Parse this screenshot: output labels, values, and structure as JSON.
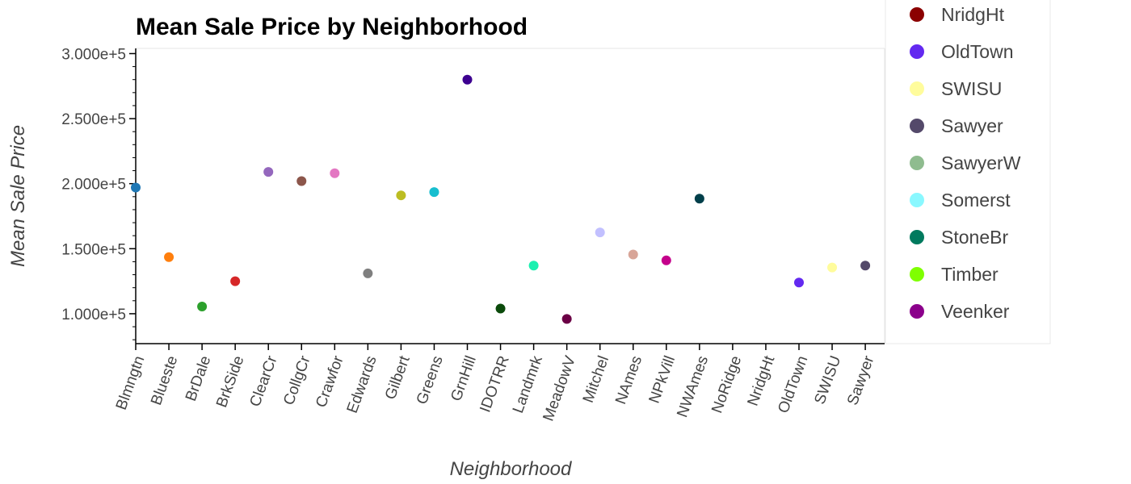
{
  "chart_data": {
    "type": "scatter",
    "title": "Mean Sale Price by Neighborhood",
    "xlabel": "Neighborhood",
    "ylabel": "Mean Sale Price",
    "ylim": [
      77000,
      304000
    ],
    "y_ticks": [
      100000,
      150000,
      200000,
      250000,
      300000
    ],
    "y_tick_labels": [
      "1.000e+5",
      "1.500e+5",
      "2.000e+5",
      "2.500e+5",
      "3.000e+5"
    ],
    "grid": false,
    "legend_position": "right",
    "categories": [
      "Blmngtn",
      "Blueste",
      "BrDale",
      "BrkSide",
      "ClearCr",
      "CollgCr",
      "Crawfor",
      "Edwards",
      "Gilbert",
      "Greens",
      "GrnHill",
      "IDOTRR",
      "Landmrk",
      "MeadowV",
      "Mitchel",
      "NAmes",
      "NPkVill",
      "NWAmes",
      "NoRidge",
      "NridgHt",
      "OldTown",
      "SWISU",
      "Sawyer"
    ],
    "points": [
      {
        "x": "Blmngtn",
        "y": 197000,
        "color": "#1f77b4"
      },
      {
        "x": "Blueste",
        "y": 143500,
        "color": "#ff7f0e"
      },
      {
        "x": "BrDale",
        "y": 105500,
        "color": "#2ca02c"
      },
      {
        "x": "BrkSide",
        "y": 125000,
        "color": "#d62728"
      },
      {
        "x": "ClearCr",
        "y": 209000,
        "color": "#9467bd"
      },
      {
        "x": "CollgCr",
        "y": 202000,
        "color": "#8c564b"
      },
      {
        "x": "Crawfor",
        "y": 208000,
        "color": "#e377c2"
      },
      {
        "x": "Edwards",
        "y": 131000,
        "color": "#7f7f7f"
      },
      {
        "x": "Gilbert",
        "y": 191000,
        "color": "#bcbd22"
      },
      {
        "x": "Greens",
        "y": 193500,
        "color": "#17becf"
      },
      {
        "x": "GrnHill",
        "y": 280000,
        "color": "#3d0090"
      },
      {
        "x": "IDOTRR",
        "y": 104000,
        "color": "#0b4a0b"
      },
      {
        "x": "Landmrk",
        "y": 137000,
        "color": "#1af0b0"
      },
      {
        "x": "MeadowV",
        "y": 96000,
        "color": "#6b0045"
      },
      {
        "x": "Mitchel",
        "y": 162500,
        "color": "#c2c0ff"
      },
      {
        "x": "NAmes",
        "y": 145500,
        "color": "#d8a598"
      },
      {
        "x": "NPkVill",
        "y": 141000,
        "color": "#c4008b"
      },
      {
        "x": "NWAmes",
        "y": 188500,
        "color": "#003f4a"
      },
      {
        "x": "OldTown",
        "y": 124000,
        "color": "#6329f0"
      },
      {
        "x": "SWISU",
        "y": 135500,
        "color": "#fffc9c"
      },
      {
        "x": "Sawyer",
        "y": 137000,
        "color": "#54496a"
      }
    ],
    "legend": [
      {
        "name": "NridgHt",
        "color": "#8b0000"
      },
      {
        "name": "OldTown",
        "color": "#6329f0"
      },
      {
        "name": "SWISU",
        "color": "#fffc9c"
      },
      {
        "name": "Sawyer",
        "color": "#54496a"
      },
      {
        "name": "SawyerW",
        "color": "#8fbc8f"
      },
      {
        "name": "Somerst",
        "color": "#8af8ff"
      },
      {
        "name": "StoneBr",
        "color": "#007a5e"
      },
      {
        "name": "Timber",
        "color": "#7fff00"
      },
      {
        "name": "Veenker",
        "color": "#8b008b"
      }
    ]
  }
}
